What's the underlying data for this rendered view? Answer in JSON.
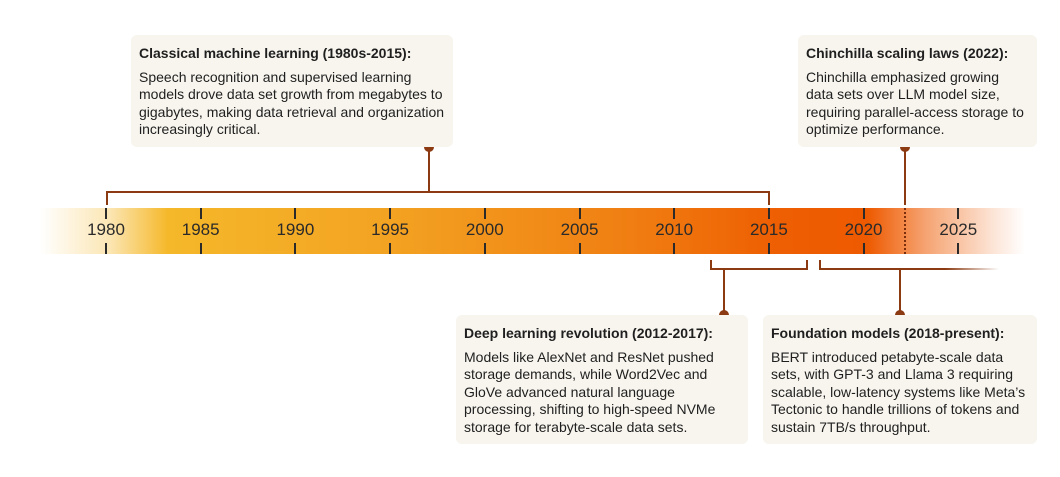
{
  "timeline": {
    "years": [
      "1980",
      "1985",
      "1990",
      "1995",
      "2000",
      "2005",
      "2010",
      "2015",
      "2020",
      "2025"
    ]
  },
  "events": [
    {
      "title": "Classical machine learning (1980s-2015):",
      "body": "Speech recognition and supervised learning models drove data set growth from megabytes to gigabytes, making data retrieval and organization increasingly critical."
    },
    {
      "title": "Chinchilla scaling laws (2022):",
      "body": "Chinchilla emphasized growing data sets over LLM model size, requiring parallel-access storage to optimize performance."
    },
    {
      "title": "Deep learning revolution (2012-2017):",
      "body": "Models like AlexNet and ResNet pushed storage demands, while Word2Vec and GloVe advanced natural language processing, shifting to high-speed NVMe storage for terabyte-scale data sets."
    },
    {
      "title": "Foundation models (2018-present):",
      "body": "BERT introduced petabyte-scale data sets, with GPT-3 and Llama 3 requiring scalable, low-latency systems like Meta’s Tectonic to handle trillions of tokens and sustain 7TB/s throughput."
    }
  ],
  "colors": {
    "connector": "#8b3a12",
    "start": "#f5b82a",
    "end": "#ee5a00",
    "card": "#f8f5ee"
  }
}
